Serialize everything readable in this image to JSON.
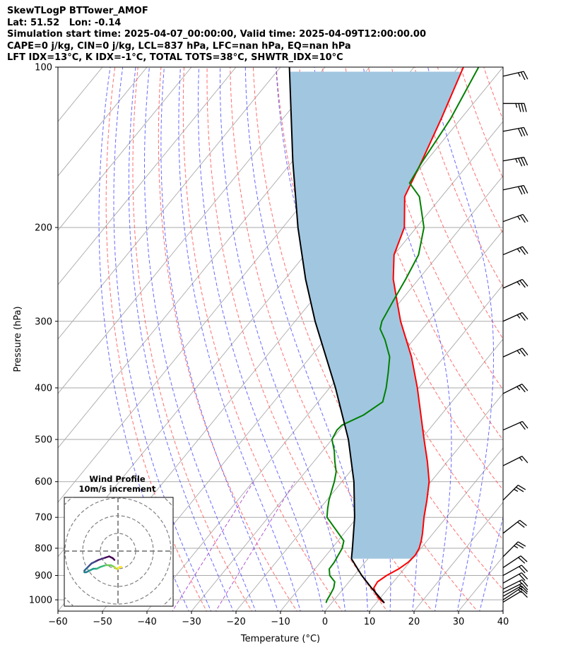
{
  "title_lines": [
    "SkewTLogP BTTower_AMOF",
    "Lat: 51.52   Lon: -0.14",
    "Simulation start time: 2025-04-07_00:00:00, Valid time: 2025-04-09T12:00:00.00",
    "CAPE=0 j/kg, CIN=0 j/kg, LCL=837 hPa, LFC=nan hPa, EQ=nan hPa",
    "LFT IDX=13°C, K IDX=-1°C, TOTAL TOTS=38°C, SHWTR_IDX=10°C"
  ],
  "chart_data": {
    "type": "skewt",
    "xlabel": "Temperature (°C)",
    "ylabel": "Pressure (hPa)",
    "xlim": [
      -60,
      40
    ],
    "ylim": [
      1050,
      100
    ],
    "x_ticks": [
      -60,
      -50,
      -40,
      -30,
      -20,
      -10,
      0,
      10,
      20,
      30,
      40
    ],
    "x_tick_labels": [
      "−60",
      "−50",
      "−40",
      "−30",
      "−20",
      "−10",
      "0",
      "10",
      "20",
      "30",
      "40"
    ],
    "y_ticks": [
      1000,
      900,
      800,
      700,
      600,
      500,
      400,
      300,
      200,
      100
    ],
    "y_tick_labels": [
      "1000",
      "900",
      "800",
      "700",
      "600",
      "500",
      "400",
      "300",
      "200",
      "100"
    ],
    "grid": true,
    "colors": {
      "temperature": "#ff0000",
      "dewpoint": "#008000",
      "parcel": "#000000",
      "cape_fill": "#a1c6e0",
      "dry_adiabats": "#ff5555",
      "moist_adiabats": "#4444ff",
      "mixing_ratio": "#aa44cc",
      "isotherms": "#aaaaaa"
    },
    "temperature": {
      "name": "Temperature",
      "p": [
        1013,
        1000,
        975,
        950,
        925,
        900,
        875,
        850,
        825,
        800,
        775,
        750,
        700,
        650,
        600,
        550,
        500,
        450,
        400,
        350,
        300,
        275,
        250,
        225,
        200,
        175,
        150,
        125,
        100
      ],
      "t": [
        11.8,
        10.3,
        8.3,
        6.7,
        6.4,
        7.3,
        8.8,
        9.7,
        10.0,
        9.6,
        8.7,
        7.6,
        5.0,
        2.5,
        -0.4,
        -4.5,
        -9.3,
        -14.5,
        -20.3,
        -27.3,
        -36.3,
        -40.8,
        -45.7,
        -50.0,
        -52.7,
        -58.3,
        -61.0,
        -64.4,
        -68.9
      ]
    },
    "dewpoint": {
      "name": "Dewpoint",
      "p": [
        1013,
        1000,
        975,
        950,
        925,
        900,
        875,
        850,
        825,
        800,
        775,
        750,
        725,
        700,
        675,
        650,
        625,
        600,
        575,
        550,
        525,
        500,
        480,
        470,
        450,
        425,
        400,
        375,
        350,
        325,
        310,
        300,
        275,
        250,
        225,
        200,
        175,
        165,
        150,
        125,
        100
      ],
      "t": [
        -1.3,
        -1.6,
        -1.9,
        -2.3,
        -3.2,
        -5.5,
        -6.8,
        -6.9,
        -7.3,
        -7.7,
        -8.7,
        -11.3,
        -14.0,
        -16.8,
        -18.2,
        -19.5,
        -20.6,
        -21.7,
        -23.1,
        -25.3,
        -27.4,
        -30.0,
        -30.6,
        -30.4,
        -27.4,
        -25.5,
        -27.3,
        -29.6,
        -32.2,
        -36.4,
        -39.5,
        -40.5,
        -41.7,
        -42.9,
        -44.5,
        -48.3,
        -55.0,
        -59.7,
        -60.8,
        -62.3,
        -65.5
      ]
    },
    "parcel": {
      "name": "Parcel",
      "p": [
        1013,
        950,
        900,
        837,
        800,
        700,
        600,
        500,
        400,
        300,
        250,
        200,
        150,
        100
      ],
      "t": [
        11.8,
        6.2,
        1.7,
        -3.7,
        -5.4,
        -10.6,
        -17.3,
        -26.3,
        -38.7,
        -55.5,
        -65.4,
        -76.6,
        -90.0,
        -108.0
      ]
    },
    "wind_barbs": [
      {
        "p": 1010,
        "u": 5,
        "v": 3
      },
      {
        "p": 1000,
        "u": 6,
        "v": 4
      },
      {
        "p": 985,
        "u": 7,
        "v": 4
      },
      {
        "p": 970,
        "u": 8,
        "v": 4
      },
      {
        "p": 955,
        "u": 8,
        "v": 4
      },
      {
        "p": 930,
        "u": 9,
        "v": 5
      },
      {
        "p": 900,
        "u": 9,
        "v": 5
      },
      {
        "p": 870,
        "u": 9,
        "v": 6
      },
      {
        "p": 830,
        "u": 9,
        "v": 9
      },
      {
        "p": 750,
        "u": 9,
        "v": 7
      },
      {
        "p": 650,
        "u": 9,
        "v": 9
      },
      {
        "p": 560,
        "u": 8,
        "v": 4
      },
      {
        "p": 480,
        "u": 9,
        "v": 4
      },
      {
        "p": 410,
        "u": 12,
        "v": 6
      },
      {
        "p": 350,
        "u": 11,
        "v": 5
      },
      {
        "p": 300,
        "u": 11,
        "v": 5
      },
      {
        "p": 260,
        "u": 11,
        "v": 5
      },
      {
        "p": 225,
        "u": 12,
        "v": 5
      },
      {
        "p": 195,
        "u": 11,
        "v": 4
      },
      {
        "p": 170,
        "u": 14,
        "v": 3
      },
      {
        "p": 150,
        "u": 17,
        "v": 3
      },
      {
        "p": 132,
        "u": 16,
        "v": 3
      },
      {
        "p": 117,
        "u": 18,
        "v": 0
      },
      {
        "p": 104,
        "u": 13,
        "v": 3
      }
    ],
    "hodograph": {
      "title": "Wind Profile",
      "subtitle": "10m/s increment",
      "ring_step": 10,
      "rings": 3,
      "u": [
        -2,
        -3,
        -5,
        -8,
        -11,
        -13,
        -15,
        -17,
        -19,
        -19,
        -18,
        -16,
        -14,
        -12,
        -10,
        -7,
        -4,
        -2,
        -1,
        0,
        1,
        2
      ],
      "v": [
        -5,
        -4,
        -3,
        -4,
        -5,
        -6,
        -7,
        -9,
        -11,
        -12,
        -12,
        -11,
        -10,
        -10,
        -9,
        -8,
        -8,
        -9,
        -10,
        -10,
        -9,
        -9
      ]
    }
  }
}
